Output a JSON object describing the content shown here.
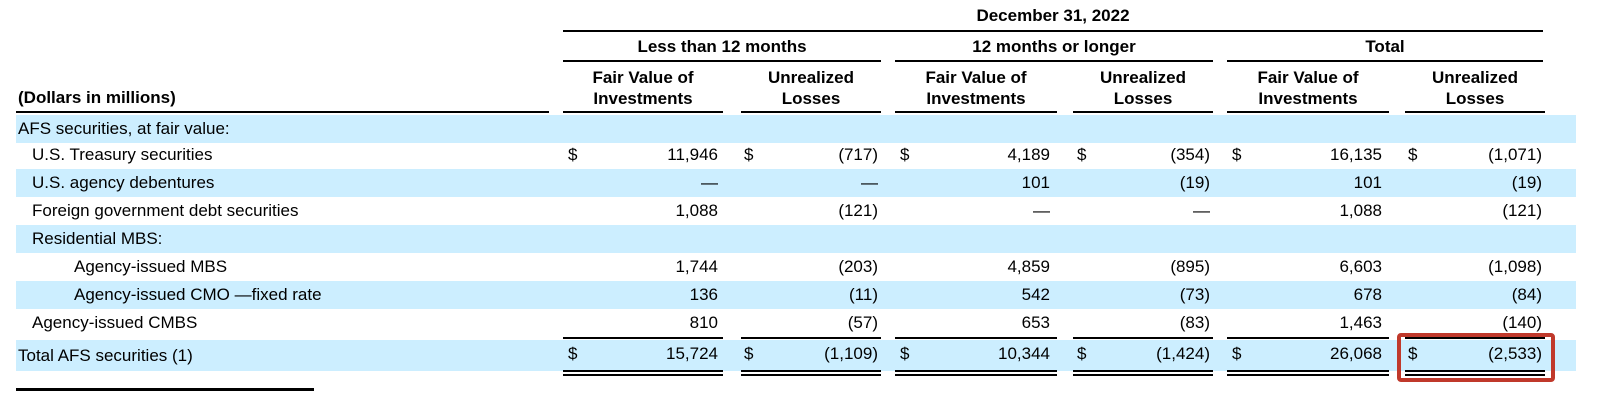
{
  "header": {
    "period": "December 31, 2022",
    "groups": [
      "Less than 12 months",
      "12 months or longer",
      "Total"
    ],
    "col_line1": [
      "Fair Value of",
      "Unrealized",
      "Fair Value of",
      "Unrealized",
      "Fair Value of",
      "Unrealized"
    ],
    "col_line2": [
      "Investments",
      "Losses",
      "Investments",
      "Losses",
      "Investments",
      "Losses"
    ],
    "stub": "(Dollars in millions)"
  },
  "rows": [
    {
      "label": "AFS securities, at fair value:",
      "values": [
        "",
        "",
        "",
        "",
        "",
        ""
      ],
      "dollar": false
    },
    {
      "label": "U.S. Treasury securities",
      "values": [
        "11,946",
        "(717)",
        "4,189",
        "(354)",
        "16,135",
        "(1,071)"
      ],
      "dollar": true
    },
    {
      "label": "U.S. agency debentures",
      "values": [
        "—",
        "—",
        "101",
        "(19)",
        "101",
        "(19)"
      ],
      "dollar": false
    },
    {
      "label": "Foreign government debt securities",
      "values": [
        "1,088",
        "(121)",
        "—",
        "—",
        "1,088",
        "(121)"
      ],
      "dollar": false
    },
    {
      "label": "Residential MBS:",
      "values": [
        "",
        "",
        "",
        "",
        "",
        ""
      ],
      "dollar": false
    },
    {
      "label": "Agency-issued MBS",
      "values": [
        "1,744",
        "(203)",
        "4,859",
        "(895)",
        "6,603",
        "(1,098)"
      ],
      "dollar": false
    },
    {
      "label": "Agency-issued CMO —fixed rate",
      "values": [
        "136",
        "(11)",
        "542",
        "(73)",
        "678",
        "(84)"
      ],
      "dollar": false
    },
    {
      "label": "Agency-issued CMBS",
      "values": [
        "810",
        "(57)",
        "653",
        "(83)",
        "1,463",
        "(140)"
      ],
      "dollar": false
    },
    {
      "label": "Total AFS securities (1)",
      "values": [
        "15,724",
        "(1,109)",
        "10,344",
        "(1,424)",
        "26,068",
        "(2,533)"
      ],
      "dollar": true
    }
  ],
  "currency_symbol": "$",
  "colors": {
    "band": "#cceeff",
    "highlight": "#c0392b"
  }
}
